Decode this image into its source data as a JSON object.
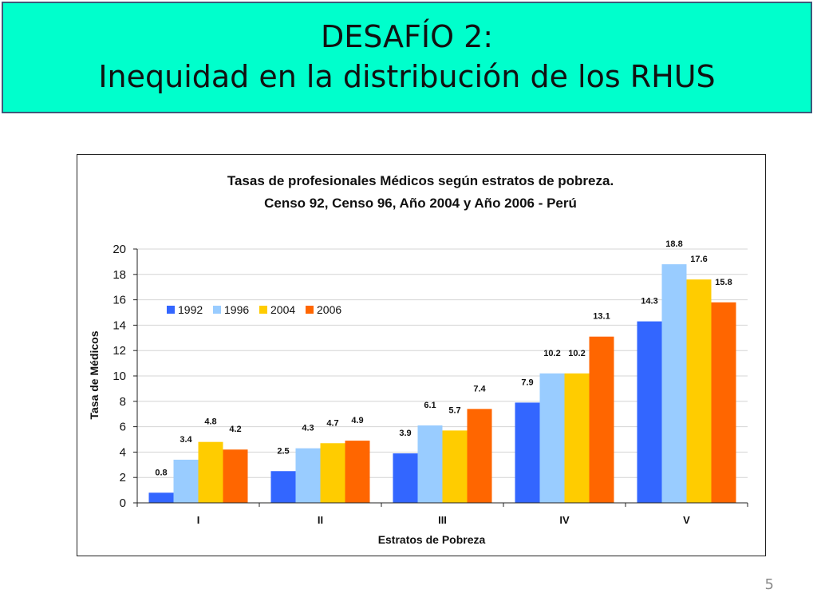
{
  "slide": {
    "title_line1": "DESAFÍO 2:",
    "title_line2": "Inequidad en la distribución de los RHUS",
    "page_number": "5",
    "title_bg_color": "#00ffcc"
  },
  "chart_data": {
    "type": "bar",
    "title": "Tasas de profesionales Médicos según estratos de pobreza.",
    "subtitle": "Censo 92, Censo 96, Año 2004 y Año 2006 - Perú",
    "xlabel": "Estratos de Pobreza",
    "ylabel": "Tasa de Médicos",
    "ylim": [
      0,
      20
    ],
    "yticks": [
      0,
      2,
      4,
      6,
      8,
      10,
      12,
      14,
      16,
      18,
      20
    ],
    "grid": true,
    "legend_position": "top-left",
    "categories": [
      "I",
      "II",
      "III",
      "IV",
      "V"
    ],
    "series": [
      {
        "name": "1992",
        "color": "#3366ff",
        "values": [
          0.8,
          2.5,
          3.9,
          7.9,
          14.3
        ]
      },
      {
        "name": "1996",
        "color": "#99ccff",
        "values": [
          3.4,
          4.3,
          6.1,
          10.2,
          18.8
        ]
      },
      {
        "name": "2004",
        "color": "#ffcc00",
        "values": [
          4.8,
          4.7,
          5.7,
          10.2,
          17.6
        ]
      },
      {
        "name": "2006",
        "color": "#ff6600",
        "values": [
          4.2,
          4.9,
          7.4,
          13.1,
          15.8
        ]
      }
    ]
  }
}
